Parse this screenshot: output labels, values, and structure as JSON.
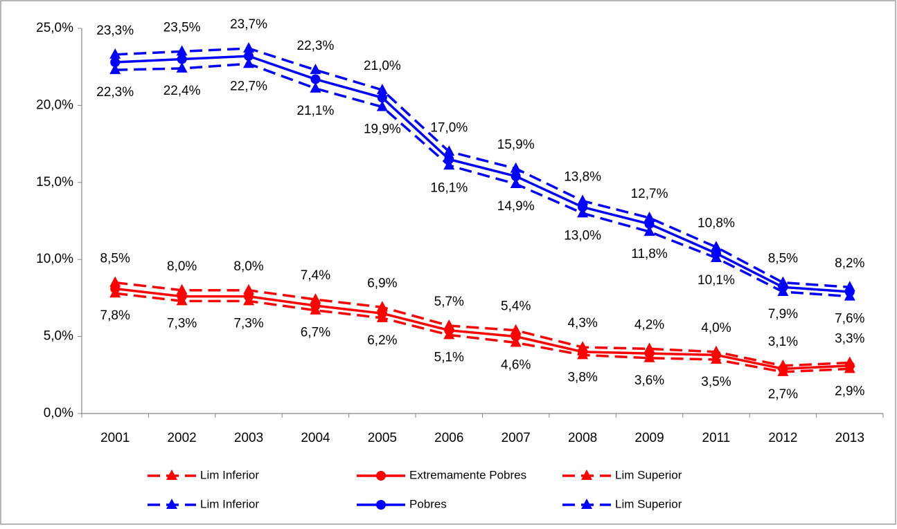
{
  "chart_data": {
    "type": "line",
    "categories": [
      "2001",
      "2002",
      "2003",
      "2004",
      "2005",
      "2006",
      "2007",
      "2008",
      "2009",
      "2011",
      "2012",
      "2013"
    ],
    "ylim": [
      0,
      25
    ],
    "yticks": [
      {
        "value": 0,
        "label": "0,0%"
      },
      {
        "value": 5,
        "label": "5,0%"
      },
      {
        "value": 10,
        "label": "10,0%"
      },
      {
        "value": 15,
        "label": "15,0%"
      },
      {
        "value": 20,
        "label": "20,0%"
      },
      {
        "value": 25,
        "label": "25,0%"
      }
    ],
    "grid": false,
    "legend": "bottom",
    "series": [
      {
        "name": "Lim Inferior",
        "color": "#ff0000",
        "style": "dashed",
        "marker": "triangle",
        "label_position": "below",
        "values": [
          7.8,
          7.3,
          7.3,
          6.7,
          6.2,
          5.1,
          4.6,
          3.8,
          3.6,
          3.5,
          2.7,
          2.9
        ],
        "value_labels": [
          "7,8%",
          "7,3%",
          "7,3%",
          "6,7%",
          "6,2%",
          "5,1%",
          "4,6%",
          "3,8%",
          "3,6%",
          "3,5%",
          "2,7%",
          "2,9%"
        ]
      },
      {
        "name": "Extremamente Pobres",
        "color": "#ff0000",
        "style": "solid",
        "marker": "circle",
        "values": [
          8.1,
          7.6,
          7.6,
          7.0,
          6.5,
          5.4,
          5.0,
          4.0,
          3.9,
          3.8,
          2.9,
          3.1
        ]
      },
      {
        "name": "Lim Superior",
        "color": "#ff0000",
        "style": "dashed",
        "marker": "triangle",
        "label_position": "above",
        "values": [
          8.5,
          8.0,
          8.0,
          7.4,
          6.9,
          5.7,
          5.4,
          4.3,
          4.2,
          4.0,
          3.1,
          3.3
        ],
        "value_labels": [
          "8,5%",
          "8,0%",
          "8,0%",
          "7,4%",
          "6,9%",
          "5,7%",
          "5,4%",
          "4,3%",
          "4,2%",
          "4,0%",
          "3,1%",
          "3,3%"
        ]
      },
      {
        "name": "Lim Inferior",
        "color": "#0000ff",
        "style": "dashed",
        "marker": "triangle",
        "label_position": "below",
        "values": [
          22.3,
          22.4,
          22.7,
          21.1,
          19.9,
          16.1,
          14.9,
          13.0,
          11.8,
          10.1,
          7.9,
          7.6
        ],
        "value_labels": [
          "22,3%",
          "22,4%",
          "22,7%",
          "21,1%",
          "19,9%",
          "16,1%",
          "14,9%",
          "13,0%",
          "11,8%",
          "10,1%",
          "7,9%",
          "7,6%"
        ]
      },
      {
        "name": "Pobres",
        "color": "#0000ff",
        "style": "solid",
        "marker": "circle",
        "values": [
          22.8,
          23.0,
          23.2,
          21.7,
          20.5,
          16.5,
          15.4,
          13.4,
          12.3,
          10.4,
          8.2,
          7.9
        ]
      },
      {
        "name": "Lim Superior",
        "color": "#0000ff",
        "style": "dashed",
        "marker": "triangle",
        "label_position": "above",
        "values": [
          23.3,
          23.5,
          23.7,
          22.3,
          21.0,
          17.0,
          15.9,
          13.8,
          12.7,
          10.8,
          8.5,
          8.2
        ],
        "value_labels": [
          "23,3%",
          "23,5%",
          "23,7%",
          "22,3%",
          "21,0%",
          "17,0%",
          "15,9%",
          "13,8%",
          "12,7%",
          "10,8%",
          "8,5%",
          "8,2%"
        ]
      }
    ]
  }
}
